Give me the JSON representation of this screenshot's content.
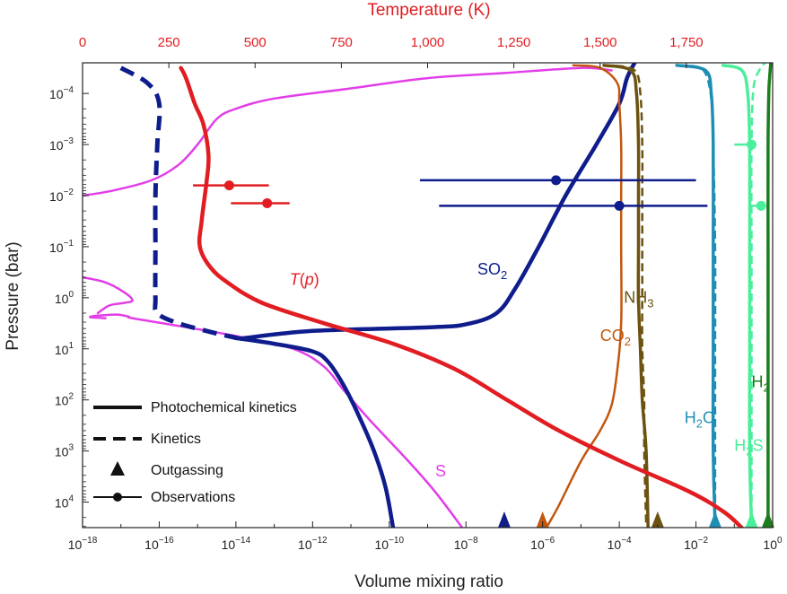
{
  "chart_data": {
    "type": "line",
    "title": "",
    "xlabel": "Volume mixing ratio",
    "x_scale": "log",
    "xlim_exponents": [
      -18,
      0
    ],
    "ylabel": "Pressure (bar)",
    "y_scale": "log",
    "ylim_exponents": [
      -4.6,
      4.5
    ],
    "y_inverted": true,
    "top_axis": {
      "label": "Temperature (K)",
      "range": [
        0,
        2000
      ],
      "ticks": [
        "0",
        "250",
        "500",
        "750",
        "1,000",
        "1,250",
        "1,500",
        "1,750"
      ],
      "color": "#e11d22"
    },
    "x_tick_labels": [
      {
        "exp": -18,
        "text": "10",
        "sup": "−18"
      },
      {
        "exp": -16,
        "text": "10",
        "sup": "−16"
      },
      {
        "exp": -14,
        "text": "10",
        "sup": "−14"
      },
      {
        "exp": -12,
        "text": "10",
        "sup": "−12"
      },
      {
        "exp": -10,
        "text": "10",
        "sup": "−10"
      },
      {
        "exp": -8,
        "text": "10",
        "sup": "−8"
      },
      {
        "exp": -6,
        "text": "10",
        "sup": "−6"
      },
      {
        "exp": -4,
        "text": "10",
        "sup": "−4"
      },
      {
        "exp": -2,
        "text": "10",
        "sup": "−2"
      },
      {
        "exp": 0,
        "text": "10",
        "sup": "0"
      }
    ],
    "y_tick_labels": [
      {
        "exp": -4,
        "text": "10",
        "sup": "−4"
      },
      {
        "exp": -3,
        "text": "10",
        "sup": "−3"
      },
      {
        "exp": -2,
        "text": "10",
        "sup": "−2"
      },
      {
        "exp": -1,
        "text": "10",
        "sup": "−1"
      },
      {
        "exp": 0,
        "text": "10",
        "sup": "0"
      },
      {
        "exp": 1,
        "text": "10",
        "sup": "1"
      },
      {
        "exp": 2,
        "text": "10",
        "sup": "2"
      },
      {
        "exp": 3,
        "text": "10",
        "sup": "3"
      },
      {
        "exp": 4,
        "text": "10",
        "sup": "4"
      }
    ],
    "series": [
      {
        "name": "S",
        "label": "S",
        "sub": "",
        "color": "#e23ee8",
        "width": 2.5,
        "dash": false,
        "label_pos": [
          -8.8,
          3.5
        ],
        "points": [
          [
            -18,
            -2
          ],
          [
            -17.2,
            -2.1
          ],
          [
            -16.2,
            -2.3
          ],
          [
            -15.5,
            -2.6
          ],
          [
            -15,
            -3
          ],
          [
            -14.5,
            -3.5
          ],
          [
            -14,
            -3.7
          ],
          [
            -13,
            -3.9
          ],
          [
            -11,
            -4.1
          ],
          [
            -9,
            -4.3
          ],
          [
            -7,
            -4.4
          ],
          [
            -5,
            -4.5
          ],
          [
            -4.2,
            -4.45
          ]
        ]
      },
      {
        "name": "S-deep",
        "label": "",
        "sub": "",
        "color": "#e23ee8",
        "width": 2.5,
        "dash": false,
        "points": [
          [
            -17.4,
            0.4
          ],
          [
            -17.8,
            0.38
          ],
          [
            -17.6,
            0.35
          ],
          [
            -17.1,
            0.33
          ],
          [
            -16.8,
            0.37
          ],
          [
            -16.7,
            0.4
          ],
          [
            -15.5,
            0.55
          ],
          [
            -14,
            0.75
          ],
          [
            -12.5,
            1
          ],
          [
            -11.7,
            1.35
          ],
          [
            -11.2,
            1.8
          ],
          [
            -10.5,
            2.4
          ],
          [
            -9.5,
            3.2
          ],
          [
            -8.8,
            3.8
          ],
          [
            -8.1,
            4.5
          ]
        ]
      },
      {
        "name": "S-upper",
        "label": "",
        "sub": "",
        "color": "#e23ee8",
        "width": 2.5,
        "dash": false,
        "points": [
          [
            -18,
            -0.4
          ],
          [
            -17.4,
            -0.3
          ],
          [
            -16.9,
            -0.1
          ],
          [
            -16.7,
            0.05
          ],
          [
            -16.9,
            0.1
          ],
          [
            -17.3,
            0.15
          ],
          [
            -17.6,
            0.3
          ]
        ]
      },
      {
        "name": "SO2 kinetics",
        "label": "",
        "sub": "",
        "color": "#0e1c8c",
        "width": 5,
        "dash": true,
        "points": [
          [
            -17,
            -4.5
          ],
          [
            -16.3,
            -4.2
          ],
          [
            -16,
            -3.8
          ],
          [
            -16.05,
            -3
          ],
          [
            -16.1,
            -2
          ],
          [
            -16.1,
            -1
          ],
          [
            -16.1,
            0
          ],
          [
            -16.05,
            0.3
          ],
          [
            -15.5,
            0.5
          ],
          [
            -14.5,
            0.7
          ],
          [
            -13.9,
            0.8
          ]
        ]
      },
      {
        "name": "SO2",
        "label": "SO",
        "sub": "2",
        "color": "#0e1c8c",
        "width": 4.5,
        "dash": false,
        "label_pos": [
          -7.7,
          -0.45
        ],
        "points": [
          [
            -13.9,
            0.8
          ],
          [
            -13,
            0.9
          ],
          [
            -12,
            1.05
          ],
          [
            -11.6,
            1.25
          ],
          [
            -11.2,
            1.7
          ],
          [
            -10.8,
            2.3
          ],
          [
            -10.4,
            3
          ],
          [
            -10.1,
            3.7
          ],
          [
            -9.9,
            4.5
          ]
        ]
      },
      {
        "name": "SO2-upper",
        "label": "",
        "sub": "",
        "color": "#0e1c8c",
        "width": 4.5,
        "dash": false,
        "points": [
          [
            -13.9,
            0.8
          ],
          [
            -12,
            0.65
          ],
          [
            -9,
            0.58
          ],
          [
            -8,
            0.52
          ],
          [
            -7.2,
            0.3
          ],
          [
            -6.7,
            -0.2
          ],
          [
            -6.1,
            -1
          ],
          [
            -5.4,
            -2
          ],
          [
            -4.6,
            -3
          ],
          [
            -4,
            -3.8
          ],
          [
            -3.8,
            -4.3
          ],
          [
            -3.6,
            -4.6
          ]
        ]
      },
      {
        "name": "NH3 kinetics",
        "label": "",
        "sub": "",
        "color": "#6b5210",
        "width": 2.5,
        "dash": true,
        "points": [
          [
            -3.3,
            4.4
          ],
          [
            -3.35,
            3
          ],
          [
            -3.35,
            2
          ],
          [
            -3.4,
            1
          ],
          [
            -3.4,
            0
          ],
          [
            -3.4,
            -1
          ],
          [
            -3.4,
            -2
          ],
          [
            -3.4,
            -3
          ],
          [
            -3.45,
            -4
          ],
          [
            -3.6,
            -4.45
          ],
          [
            -4.2,
            -4.55
          ]
        ]
      },
      {
        "name": "NH3",
        "label": "NH",
        "sub": "3",
        "color": "#6b5210",
        "width": 3.5,
        "dash": false,
        "label_pos": [
          -3.88,
          0.1
        ],
        "points": [
          [
            -3.25,
            4.5
          ],
          [
            -3.3,
            3
          ],
          [
            -3.4,
            2
          ],
          [
            -3.45,
            1
          ],
          [
            -3.5,
            0
          ],
          [
            -3.5,
            -1
          ],
          [
            -3.5,
            -2
          ],
          [
            -3.5,
            -3
          ],
          [
            -3.55,
            -4
          ],
          [
            -3.7,
            -4.45
          ],
          [
            -4.4,
            -4.55
          ]
        ]
      },
      {
        "name": "CO2",
        "label": "CO",
        "sub": "2",
        "color": "#c2570e",
        "width": 2.5,
        "dash": false,
        "label_pos": [
          -4.5,
          0.85
        ],
        "points": [
          [
            -5.9,
            4.5
          ],
          [
            -5.6,
            4.1
          ],
          [
            -5,
            3.2
          ],
          [
            -4.5,
            2.6
          ],
          [
            -4.2,
            2.1
          ],
          [
            -4.05,
            1.4
          ],
          [
            -3.95,
            0.5
          ],
          [
            -3.95,
            -1
          ],
          [
            -3.95,
            -2
          ],
          [
            -3.95,
            -3
          ],
          [
            -4,
            -3.8
          ],
          [
            -4.05,
            -4.2
          ],
          [
            -4.5,
            -4.5
          ],
          [
            -5.2,
            -4.55
          ]
        ]
      },
      {
        "name": "H2O kinetics",
        "label": "",
        "sub": "",
        "color": "#1f8eb5",
        "width": 2.5,
        "dash": true,
        "points": [
          [
            -1.5,
            4.5
          ],
          [
            -1.5,
            3
          ],
          [
            -1.5,
            1
          ],
          [
            -1.5,
            -1
          ],
          [
            -1.55,
            -3
          ],
          [
            -1.6,
            -3.9
          ],
          [
            -1.8,
            -4.45
          ],
          [
            -2.3,
            -4.55
          ]
        ]
      },
      {
        "name": "H2O",
        "label": "H",
        "sub": "2",
        "suffix": "O",
        "color": "#1f8eb5",
        "width": 3.5,
        "dash": false,
        "label_pos": [
          -2.3,
          2.45
        ],
        "points": [
          [
            -1.5,
            4.5
          ],
          [
            -1.55,
            3
          ],
          [
            -1.55,
            1
          ],
          [
            -1.55,
            -1
          ],
          [
            -1.55,
            -3
          ],
          [
            -1.6,
            -4
          ],
          [
            -1.75,
            -4.45
          ],
          [
            -2.5,
            -4.55
          ]
        ]
      },
      {
        "name": "H2S kinetics",
        "label": "",
        "sub": "",
        "color": "#49ef9a",
        "width": 2.5,
        "dash": true,
        "points": [
          [
            -0.55,
            4.5
          ],
          [
            -0.55,
            3
          ],
          [
            -0.55,
            1
          ],
          [
            -0.55,
            -1
          ],
          [
            -0.55,
            -3
          ],
          [
            -0.5,
            -4.1
          ],
          [
            -0.35,
            -4.45
          ],
          [
            -0.2,
            -4.6
          ]
        ]
      },
      {
        "name": "H2S",
        "label": "H",
        "sub": "2",
        "suffix": "S",
        "color": "#49ef9a",
        "width": 3.5,
        "dash": false,
        "label_pos": [
          -1.0,
          3.0
        ],
        "points": [
          [
            -0.55,
            4.5
          ],
          [
            -0.6,
            3
          ],
          [
            -0.6,
            1
          ],
          [
            -0.6,
            -1
          ],
          [
            -0.6,
            -3
          ],
          [
            -0.65,
            -4
          ],
          [
            -0.8,
            -4.45
          ],
          [
            -1.3,
            -4.55
          ]
        ]
      },
      {
        "name": "H2",
        "label": "H",
        "sub": "2",
        "color": "#1b7d1b",
        "width": 3.5,
        "dash": false,
        "label_pos": [
          -0.55,
          1.75
        ],
        "points": [
          [
            -0.12,
            4.5
          ],
          [
            -0.12,
            3
          ],
          [
            -0.12,
            1
          ],
          [
            -0.12,
            -1
          ],
          [
            -0.12,
            -3
          ],
          [
            -0.1,
            -4
          ],
          [
            -0.08,
            -4.3
          ],
          [
            -0.05,
            -4.6
          ]
        ]
      },
      {
        "name": "T(p)",
        "label": "T(p)",
        "sub": "",
        "color": "#e11d22",
        "width": 4.5,
        "dash": false,
        "temperature_series": true,
        "label_pos_temp": [
          600,
          -0.25
        ],
        "points_temp": [
          [
            285,
            -4.5
          ],
          [
            300,
            -4.3
          ],
          [
            325,
            -3.8
          ],
          [
            350,
            -3.4
          ],
          [
            365,
            -2.8
          ],
          [
            360,
            -2.3
          ],
          [
            345,
            -1.5
          ],
          [
            340,
            -1
          ],
          [
            370,
            -0.6
          ],
          [
            420,
            -0.3
          ],
          [
            520,
            0.1
          ],
          [
            700,
            0.5
          ],
          [
            900,
            0.9
          ],
          [
            1080,
            1.4
          ],
          [
            1230,
            2
          ],
          [
            1380,
            2.6
          ],
          [
            1560,
            3.2
          ],
          [
            1760,
            3.8
          ],
          [
            1860,
            4.2
          ],
          [
            1910,
            4.5
          ]
        ]
      }
    ],
    "outgassing": [
      {
        "species": "SO2",
        "x_exp": -7.0,
        "color": "#0e1c8c"
      },
      {
        "species": "CO2",
        "x_exp": -6.0,
        "color": "#c2570e"
      },
      {
        "species": "NH3",
        "x_exp": -3.0,
        "color": "#6b5210"
      },
      {
        "species": "H2O",
        "x_exp": -1.5,
        "color": "#1f8eb5"
      },
      {
        "species": "H2S",
        "x_exp": -0.55,
        "color": "#49ef9a"
      },
      {
        "species": "H2",
        "x_exp": -0.12,
        "color": "#1b7d1b"
      }
    ],
    "observations": [
      {
        "species": "SO2",
        "x_exp": -5.65,
        "x_low": -9.2,
        "x_high": -2.0,
        "y_exp": -2.3,
        "color": "#0e1c8c"
      },
      {
        "species": "SO2",
        "x_exp": -4.0,
        "x_low": -8.7,
        "x_high": -1.7,
        "y_exp": -1.8,
        "color": "#0e1c8c"
      },
      {
        "species": "T",
        "temp": 425,
        "temp_low": 320,
        "temp_high": 540,
        "y_exp": -2.2,
        "color": "#e11d22"
      },
      {
        "species": "T",
        "temp": 535,
        "temp_low": 430,
        "temp_high": 600,
        "y_exp": -1.85,
        "color": "#e11d22"
      },
      {
        "species": "H2S",
        "x_exp": -0.55,
        "x_low": -1.0,
        "x_high": -0.55,
        "y_exp": -3.0,
        "color": "#49ef9a"
      },
      {
        "species": "H2S",
        "x_exp": -0.3,
        "x_low": -0.6,
        "x_high": -0.3,
        "y_exp": -1.8,
        "color": "#49ef9a"
      }
    ],
    "legend": {
      "placement": "bottom-left",
      "items": [
        {
          "style": "solid",
          "label": "Photochemical kinetics"
        },
        {
          "style": "dashed",
          "label": "Kinetics"
        },
        {
          "style": "triangle",
          "label": "Outgassing"
        },
        {
          "style": "marker-line",
          "label": "Observations"
        }
      ]
    }
  }
}
